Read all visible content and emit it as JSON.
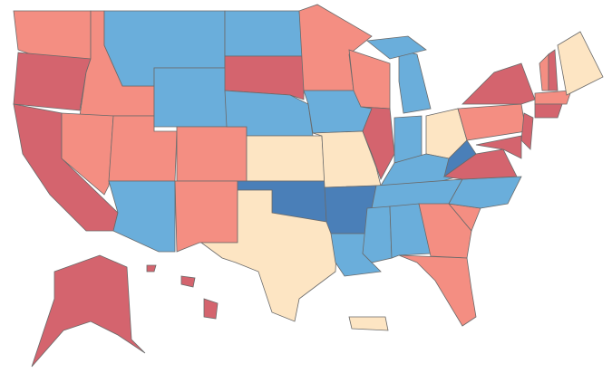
{
  "map": {
    "palette": [
      "#d4646e",
      "#f48e82",
      "#fde5c3",
      "#6aaedb",
      "#4a7fb8"
    ],
    "border_color": "#6a6a6a",
    "background": "#ffffff"
  }
}
